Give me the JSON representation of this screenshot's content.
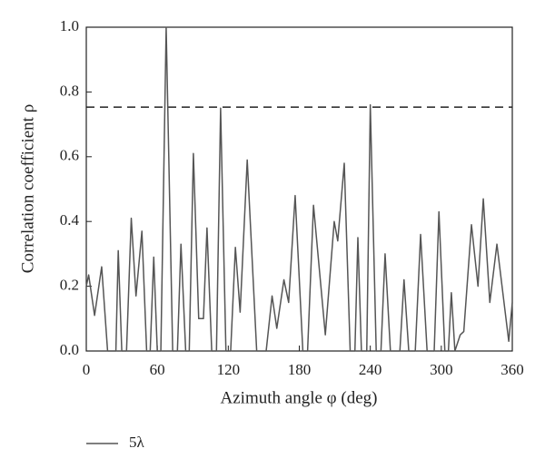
{
  "chart_data": {
    "type": "line",
    "x_label": "Azimuth angle φ (deg)",
    "y_label": "Correlation coefficient ρ",
    "x": [
      0,
      2,
      7,
      13,
      18,
      25,
      27,
      30,
      34,
      38,
      42,
      47,
      51,
      54,
      57,
      60,
      63,
      67.5,
      73,
      77,
      80,
      84,
      87,
      90.5,
      95,
      99,
      102,
      106,
      110,
      113.5,
      118,
      122,
      126,
      130,
      136,
      144,
      152,
      157,
      161,
      167,
      171,
      176.5,
      183,
      187,
      192,
      202,
      209.5,
      212.5,
      218,
      223,
      227,
      229.5,
      232.5,
      237,
      240,
      245,
      249,
      252.5,
      257,
      265,
      268.5,
      272.5,
      278,
      282.5,
      288,
      294,
      298,
      303,
      306,
      308.5,
      311.5,
      316,
      319,
      325.5,
      331,
      335.5,
      341,
      347,
      357,
      360
    ],
    "series": [
      {
        "name": "5λ",
        "color": "#555555",
        "values": [
          0.2,
          0.235,
          0.11,
          0.26,
          0,
          0,
          0.31,
          0,
          0,
          0.41,
          0.17,
          0.37,
          0,
          0,
          0.29,
          0,
          0,
          1.0,
          0,
          0,
          0.33,
          0,
          0,
          0.61,
          0.1,
          0.1,
          0.38,
          0,
          0,
          0.75,
          0,
          0,
          0.32,
          0.12,
          0.59,
          0,
          0,
          0.17,
          0.07,
          0.22,
          0.15,
          0.48,
          0,
          0,
          0.45,
          0.05,
          0.4,
          0.34,
          0.58,
          0,
          0,
          0.35,
          0,
          0,
          0.76,
          0,
          0,
          0.3,
          0,
          0,
          0.22,
          0,
          0,
          0.36,
          0,
          0,
          0.43,
          0,
          0,
          0.18,
          0,
          0.05,
          0.06,
          0.39,
          0.2,
          0.47,
          0.15,
          0.33,
          0.03,
          0.15
        ]
      }
    ],
    "reference_line": 0.753,
    "xlim": [
      0,
      360
    ],
    "xticks": [
      0,
      60,
      120,
      180,
      240,
      300,
      360
    ],
    "ylim": [
      0,
      1
    ],
    "yticks": [
      {
        "value": 0,
        "label": "0.0"
      },
      0.2,
      0.4,
      0.6,
      0.8,
      {
        "value": 1,
        "label": "1.0"
      }
    ]
  }
}
